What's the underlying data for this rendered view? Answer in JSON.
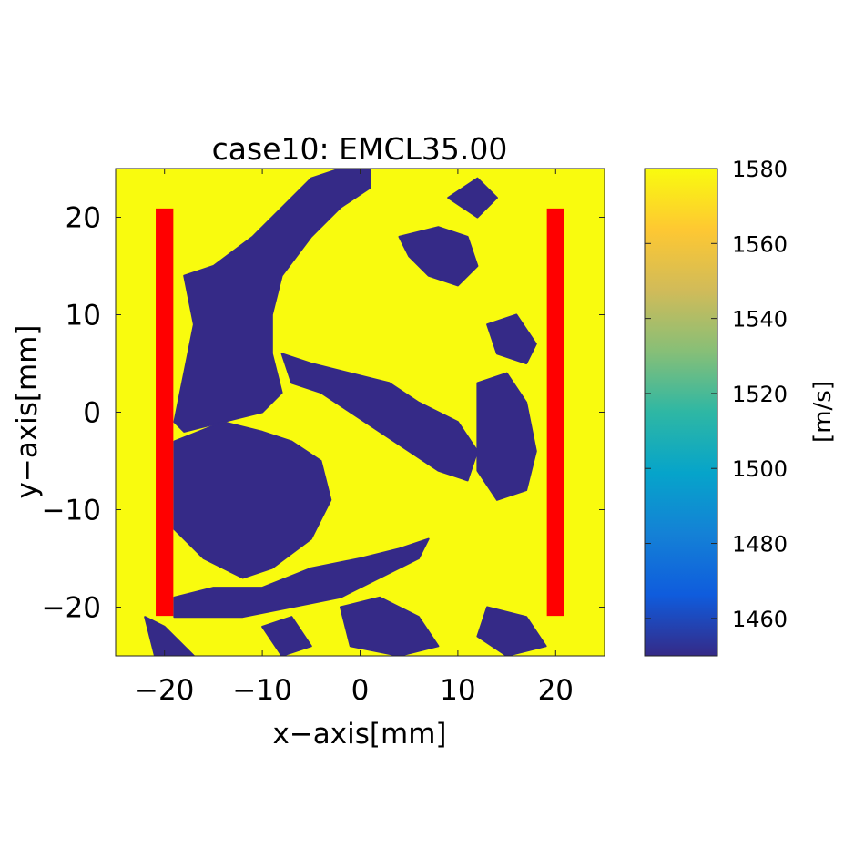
{
  "chart_data": {
    "type": "heatmap",
    "title": "case10: EMCL35.00",
    "xlabel": "x−axis[mm]",
    "ylabel": "y−axis[mm]",
    "xlim": [
      -25,
      25
    ],
    "ylim": [
      -25,
      25
    ],
    "x_ticks": [
      -20,
      -10,
      0,
      10,
      20
    ],
    "y_ticks": [
      20,
      10,
      0,
      -10,
      -20
    ],
    "x_tick_labels": [
      "−20",
      "−10",
      "0",
      "10",
      "20"
    ],
    "y_tick_labels": [
      "20",
      "10",
      "0",
      "−10",
      "−20"
    ],
    "field": {
      "background_value": 1580,
      "low_value": 1450,
      "low_regions": [
        {
          "points": [
            [
              -18,
              14
            ],
            [
              -15,
              15
            ],
            [
              -11,
              18
            ],
            [
              -8,
              21
            ],
            [
              -5,
              24
            ],
            [
              -2,
              25
            ],
            [
              1,
              25
            ],
            [
              1,
              23
            ],
            [
              -2,
              21
            ],
            [
              -5,
              18
            ],
            [
              -8,
              14
            ],
            [
              -9,
              10
            ],
            [
              -9,
              6
            ],
            [
              -8,
              2
            ],
            [
              -10,
              0
            ],
            [
              -14,
              -1
            ],
            [
              -18,
              -2
            ],
            [
              -19,
              -1
            ],
            [
              -18,
              4
            ],
            [
              -17,
              9
            ]
          ]
        },
        {
          "points": [
            [
              -19,
              -3
            ],
            [
              -14,
              -1
            ],
            [
              -10,
              -2
            ],
            [
              -7,
              -3
            ],
            [
              -4,
              -5
            ],
            [
              -3,
              -9
            ],
            [
              -5,
              -13
            ],
            [
              -9,
              -16
            ],
            [
              -12,
              -17
            ],
            [
              -16,
              -15
            ],
            [
              -19,
              -12
            ]
          ]
        },
        {
          "points": [
            [
              -19,
              -19
            ],
            [
              -15,
              -18
            ],
            [
              -10,
              -18
            ],
            [
              -5,
              -16
            ],
            [
              0,
              -15
            ],
            [
              4,
              -14
            ],
            [
              7,
              -13
            ],
            [
              6,
              -15
            ],
            [
              2,
              -17
            ],
            [
              -2,
              -19
            ],
            [
              -7,
              -20
            ],
            [
              -12,
              -21
            ],
            [
              -16,
              -21
            ],
            [
              -19,
              -21
            ]
          ]
        },
        {
          "points": [
            [
              -8,
              6
            ],
            [
              -5,
              5
            ],
            [
              -1,
              4
            ],
            [
              3,
              3
            ],
            [
              6,
              1
            ],
            [
              10,
              -1
            ],
            [
              12,
              -4
            ],
            [
              11,
              -7
            ],
            [
              8,
              -6
            ],
            [
              5,
              -4
            ],
            [
              2,
              -2
            ],
            [
              -1,
              0
            ],
            [
              -4,
              2
            ],
            [
              -7,
              3
            ]
          ]
        },
        {
          "points": [
            [
              12,
              3
            ],
            [
              15,
              4
            ],
            [
              17,
              1
            ],
            [
              18,
              -4
            ],
            [
              17,
              -8
            ],
            [
              14,
              -9
            ],
            [
              12,
              -6
            ]
          ]
        },
        {
          "points": [
            [
              4,
              18
            ],
            [
              8,
              19
            ],
            [
              11,
              18
            ],
            [
              12,
              15
            ],
            [
              10,
              13
            ],
            [
              7,
              14
            ],
            [
              5,
              16
            ]
          ]
        },
        {
          "points": [
            [
              13,
              9
            ],
            [
              16,
              10
            ],
            [
              18,
              7
            ],
            [
              17,
              5
            ],
            [
              14,
              6
            ]
          ]
        },
        {
          "points": [
            [
              -2,
              -20
            ],
            [
              2,
              -19
            ],
            [
              6,
              -21
            ],
            [
              8,
              -24
            ],
            [
              4,
              -25
            ],
            [
              -1,
              -24
            ]
          ]
        },
        {
          "points": [
            [
              13,
              -20
            ],
            [
              17,
              -21
            ],
            [
              19,
              -24
            ],
            [
              15,
              -25
            ],
            [
              12,
              -23
            ]
          ]
        },
        {
          "points": [
            [
              -22,
              -21
            ],
            [
              -20,
              -22
            ],
            [
              -17,
              -25
            ],
            [
              -21,
              -25
            ]
          ]
        },
        {
          "points": [
            [
              9,
              22
            ],
            [
              12,
              24
            ],
            [
              14,
              22
            ],
            [
              12,
              20
            ]
          ]
        },
        {
          "points": [
            [
              -10,
              -22
            ],
            [
              -7,
              -21
            ],
            [
              -5,
              -24
            ],
            [
              -8,
              -25
            ]
          ]
        }
      ]
    },
    "electrodes": [
      {
        "x_range": [
          -20.9,
          -19.1
        ],
        "y_range": [
          -20.9,
          20.9
        ],
        "color": "#ff0000"
      },
      {
        "x_range": [
          19.1,
          20.9
        ],
        "y_range": [
          -20.9,
          20.9
        ],
        "color": "#ff0000"
      }
    ],
    "colorbar": {
      "min": 1450,
      "max": 1580,
      "ticks": [
        1460,
        1480,
        1500,
        1520,
        1540,
        1560,
        1580
      ],
      "unit_label": "[m/s]",
      "colormap": "parula",
      "colormap_stops": [
        "#352a87",
        "#0f5cdd",
        "#1481d6",
        "#06a4ca",
        "#2eb7a4",
        "#87bf77",
        "#d1bb59",
        "#fec832",
        "#f9fb0e"
      ]
    }
  }
}
